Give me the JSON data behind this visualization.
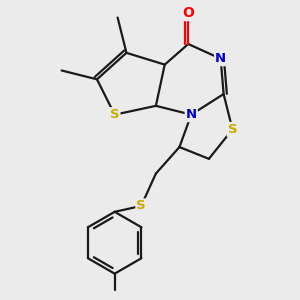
{
  "bg_color": "#ebebeb",
  "bond_color": "#1a1a1a",
  "atom_colors": {
    "O": "#ff0000",
    "N": "#0000cc",
    "S": "#ccaa00",
    "C": "#1a1a1a"
  },
  "figsize": [
    3.0,
    3.0
  ],
  "dpi": 100
}
